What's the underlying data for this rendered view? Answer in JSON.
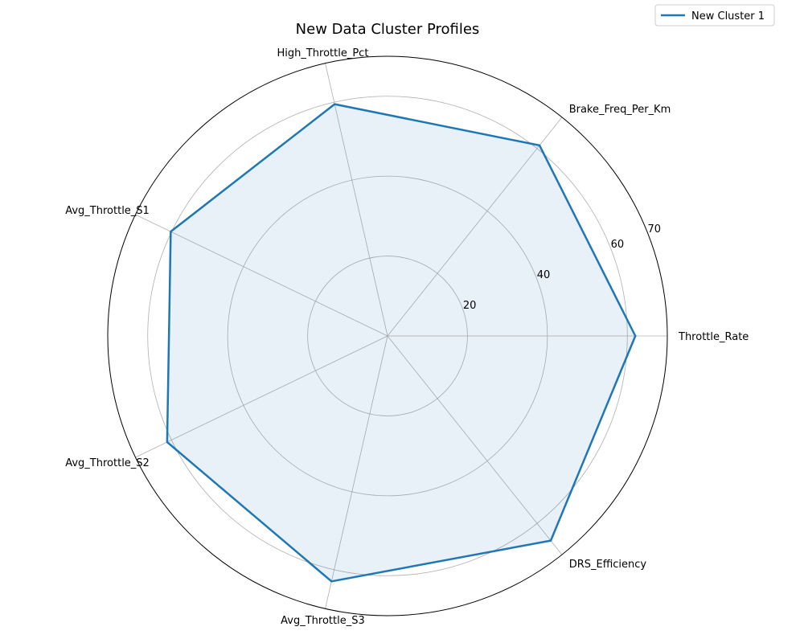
{
  "chart_data": {
    "type": "radar",
    "title": "New Data Cluster Profiles",
    "axes": [
      "Throttle_Rate",
      "Brake_Freq_Per_Km",
      "High_Throttle_Pct",
      "Avg_Throttle_S1",
      "Avg_Throttle_S2",
      "Avg_Throttle_S3",
      "DRS_Efficiency"
    ],
    "r_ticks": [
      20,
      40,
      60,
      70
    ],
    "r_range": [
      0,
      70
    ],
    "grid": true,
    "legend_position": "top-right",
    "series": [
      {
        "name": "New Cluster 1",
        "values": [
          62,
          61,
          59.5,
          60.2,
          61.2,
          63,
          65.5
        ],
        "color": "#1f77b4"
      }
    ]
  }
}
